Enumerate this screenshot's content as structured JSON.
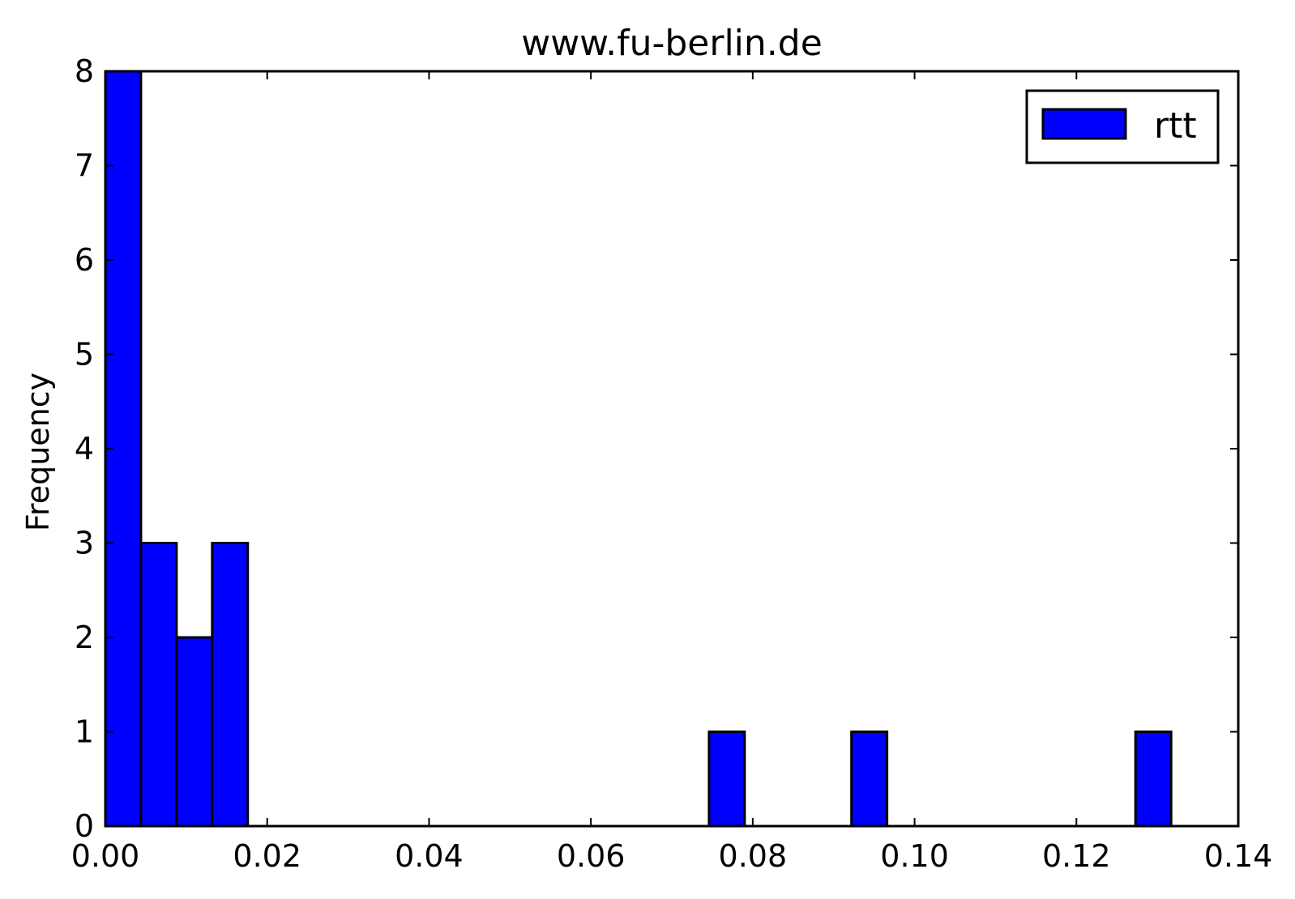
{
  "chart_data": {
    "type": "bar",
    "title": "www.fu-berlin.de",
    "xlabel": "",
    "ylabel": "Frequency",
    "xlim": [
      0.0,
      0.14
    ],
    "ylim": [
      0,
      8
    ],
    "x_ticks": [
      "0.00",
      "0.02",
      "0.04",
      "0.06",
      "0.08",
      "0.10",
      "0.12",
      "0.14"
    ],
    "y_ticks": [
      "0",
      "1",
      "2",
      "3",
      "4",
      "5",
      "6",
      "7",
      "8"
    ],
    "grid": false,
    "legend_position": "top-right",
    "series": [
      {
        "name": "rtt",
        "color": "#0000ff",
        "bins": [
          {
            "x0": 0.0,
            "x1": 0.0044,
            "count": 8
          },
          {
            "x0": 0.0044,
            "x1": 0.0088,
            "count": 3
          },
          {
            "x0": 0.0088,
            "x1": 0.0132,
            "count": 2
          },
          {
            "x0": 0.0132,
            "x1": 0.0176,
            "count": 3
          },
          {
            "x0": 0.0746,
            "x1": 0.079,
            "count": 1
          },
          {
            "x0": 0.0922,
            "x1": 0.0966,
            "count": 1
          },
          {
            "x0": 0.1273,
            "x1": 0.1317,
            "count": 1
          }
        ]
      }
    ]
  }
}
